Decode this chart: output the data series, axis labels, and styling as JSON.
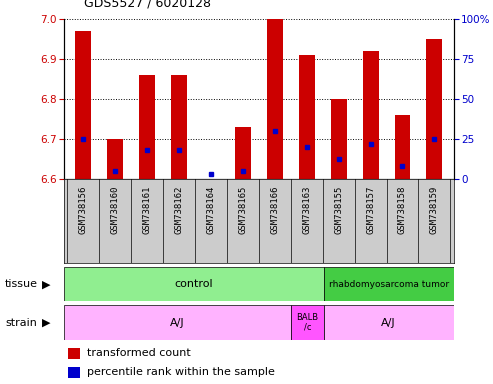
{
  "title": "GDS5527 / 6020128",
  "samples": [
    "GSM738156",
    "GSM738160",
    "GSM738161",
    "GSM738162",
    "GSM738164",
    "GSM738165",
    "GSM738166",
    "GSM738163",
    "GSM738155",
    "GSM738157",
    "GSM738158",
    "GSM738159"
  ],
  "red_values": [
    6.97,
    6.7,
    6.86,
    6.86,
    6.6,
    6.73,
    7.0,
    6.91,
    6.8,
    6.92,
    6.76,
    6.95
  ],
  "blue_percentile": [
    25,
    5,
    18,
    18,
    3,
    5,
    30,
    20,
    12,
    22,
    8,
    25
  ],
  "ymin": 6.6,
  "ymax": 7.0,
  "yticks": [
    6.6,
    6.7,
    6.8,
    6.9,
    7.0
  ],
  "right_yticks": [
    0,
    25,
    50,
    75,
    100
  ],
  "red_color": "#CC0000",
  "blue_color": "#0000CC",
  "bar_width": 0.5,
  "base_value": 6.6,
  "control_color": "#90EE90",
  "rhabdo_color": "#44CC44",
  "strain_aj_color": "#FFB3FF",
  "strain_balb_color": "#FF55FF",
  "gray_bg": "#CCCCCC"
}
